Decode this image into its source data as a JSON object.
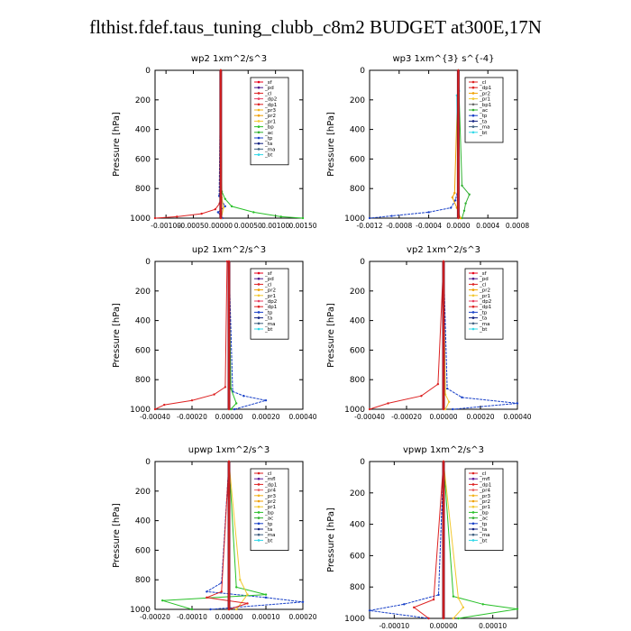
{
  "page_title": "flthist.fdef.taus_tuning_clubb_c8m2  BUDGET at300E,17N",
  "colors": {
    "sf": "#e8001c",
    "pd": "#4a1a8c",
    "cl": "#d22",
    "mfl": "#5a1a9a",
    "dp1": "#dd2222",
    "dp2": "#e84060",
    "pr1": "#f2c830",
    "pr2": "#f0a000",
    "pr3": "#f4b41a",
    "pr4": "#e86060",
    "bp": "#28c028",
    "ac": "#30b030",
    "tp": "#1840c8",
    "ta": "#102080",
    "ma": "#406080",
    "bt": "#30d8e8"
  },
  "chart_data": [
    {
      "type": "line",
      "title": "wp2  1xm^2/s^3",
      "ylabel": "Pressure [hPa]",
      "xlim": [
        -0.0012,
        0.0015
      ],
      "ylim": [
        1000,
        0
      ],
      "xticks": [
        -0.001,
        -0.0005,
        0.0,
        0.0005,
        0.001,
        0.0015
      ],
      "xtick_labels": [
        "-0.00100",
        "-0.00050",
        ".00000",
        "0.00050",
        "0.00100",
        "0.00150"
      ],
      "yticks": [
        0,
        200,
        400,
        600,
        800,
        1000
      ],
      "legend": [
        "_sf",
        "_pd",
        "_cl",
        "_dp2",
        "_dp1",
        "_pr3",
        "_pr2",
        "_pr1",
        "_bp",
        "_ac",
        "_tp",
        "_ta",
        "_ma",
        "_bt"
      ],
      "series": [
        {
          "name": "_dp1",
          "x": [
            0,
            0,
            -2e-05,
            -0.0001,
            -0.00035,
            -0.0008,
            -0.0012
          ],
          "y": [
            0,
            800,
            900,
            940,
            970,
            990,
            1000
          ]
        },
        {
          "name": "_bp",
          "x": [
            0,
            2e-05,
            8e-05,
            0.0002,
            0.0006,
            0.0011,
            0.0015
          ],
          "y": [
            0,
            820,
            870,
            920,
            960,
            990,
            1000
          ]
        },
        {
          "name": "_tp",
          "x": [
            0,
            -3e-05,
            8e-05,
            -5e-05,
            3e-05
          ],
          "y": [
            0,
            850,
            920,
            960,
            1000
          ]
        },
        {
          "name": "_pr1",
          "x": [
            0,
            2e-05,
            5e-05,
            1e-05
          ],
          "y": [
            0,
            860,
            930,
            1000
          ]
        },
        {
          "name": "_cl",
          "x": [
            0,
            0,
            0
          ],
          "y": [
            0,
            500,
            1000
          ]
        }
      ]
    },
    {
      "type": "line",
      "title": "wp3  1xm^{3} s^{-4}",
      "ylabel": "Pressure [hPa]",
      "xlim": [
        -0.0012,
        0.0008
      ],
      "ylim": [
        1000,
        0
      ],
      "xticks": [
        -0.0012,
        -0.0008,
        -0.0004,
        0.0,
        0.0004,
        0.0008
      ],
      "xtick_labels": [
        "-0.0012",
        "-0.0008",
        "-0.0004",
        "0.0000",
        "0.0004",
        "0.0008"
      ],
      "yticks": [
        0,
        200,
        400,
        600,
        800,
        1000
      ],
      "legend": [
        "_cl",
        "_dp1",
        "_pr2",
        "_pr1",
        "_bp1",
        "_ac",
        "_tp",
        "_ta",
        "_ma",
        "_bt"
      ],
      "series": [
        {
          "name": "_tp",
          "x": [
            0,
            0,
            -4e-05,
            -0.0001,
            -0.0004,
            -0.0009,
            -0.0012
          ],
          "y": [
            0,
            800,
            880,
            930,
            960,
            985,
            1000
          ]
        },
        {
          "name": "_ac",
          "x": [
            0,
            5e-05,
            0.00015,
            0.0001,
            8e-05,
            5e-05
          ],
          "y": [
            0,
            780,
            840,
            900,
            950,
            1000
          ]
        },
        {
          "name": "_pr2",
          "x": [
            0,
            -5e-05,
            -8e-05,
            -2e-05,
            3e-05
          ],
          "y": [
            0,
            830,
            860,
            930,
            1000
          ]
        },
        {
          "name": "_bt",
          "x": [
            0,
            1e-05,
            -2e-05,
            0.0
          ],
          "y": [
            0,
            140,
            170,
            1000
          ]
        },
        {
          "name": "_dp1",
          "x": [
            0,
            0,
            0
          ],
          "y": [
            0,
            500,
            1000
          ]
        }
      ]
    },
    {
      "type": "line",
      "title": "up2  1xm^2/s^3",
      "ylabel": "Pressure [hPa]",
      "xlim": [
        -0.0004,
        0.0004
      ],
      "ylim": [
        1000,
        0
      ],
      "xticks": [
        -0.0004,
        -0.0002,
        0.0,
        0.0002,
        0.0004
      ],
      "xtick_labels": [
        "-0.00040",
        "-0.00020",
        "0.00000",
        "0.00020",
        "0.00040"
      ],
      "yticks": [
        0,
        200,
        400,
        600,
        800,
        1000
      ],
      "legend": [
        "_sf",
        "_pd",
        "_cl",
        "_pr2",
        "_pr1",
        "_dp2",
        "_dp1",
        "_tp",
        "_ta",
        "_ma",
        "_bt"
      ],
      "series": [
        {
          "name": "_dp1",
          "x": [
            -1e-05,
            -2e-05,
            -8e-05,
            -0.0002,
            -0.00035,
            -0.0004
          ],
          "y": [
            0,
            850,
            900,
            940,
            970,
            1000
          ]
        },
        {
          "name": "_tp",
          "x": [
            0,
            2e-05,
            8e-05,
            0.0002,
            3e-05
          ],
          "y": [
            0,
            880,
            910,
            940,
            1000
          ]
        },
        {
          "name": "_bp",
          "x": [
            0,
            1e-05,
            4e-05,
            1e-05
          ],
          "y": [
            0,
            860,
            960,
            1000
          ]
        },
        {
          "name": "_cl",
          "x": [
            0,
            0,
            0
          ],
          "y": [
            0,
            500,
            1000
          ]
        }
      ]
    },
    {
      "type": "line",
      "title": "vp2  1xm^2/s^3",
      "ylabel": "Pressure [hPa]",
      "xlim": [
        -0.0004,
        0.0004
      ],
      "ylim": [
        1000,
        0
      ],
      "xticks": [
        -0.0004,
        -0.0002,
        0.0,
        0.0002,
        0.0004
      ],
      "xtick_labels": [
        "-0.00040",
        "-0.00020",
        "0.00000",
        "0.00020",
        "0.00040"
      ],
      "yticks": [
        0,
        200,
        400,
        600,
        800,
        1000
      ],
      "legend": [
        "_sf",
        "_pd",
        "_cl",
        "_pr2",
        "_pr1",
        "_dp2",
        "_dp1",
        "_tp",
        "_ta",
        "_ma",
        "_bt"
      ],
      "series": [
        {
          "name": "_dp1",
          "x": [
            0,
            -3e-05,
            -0.00012,
            -0.0003,
            -0.0004
          ],
          "y": [
            0,
            830,
            910,
            960,
            1000
          ]
        },
        {
          "name": "_tp",
          "x": [
            0,
            2e-05,
            0.0001,
            0.0004,
            5e-05
          ],
          "y": [
            0,
            860,
            920,
            960,
            1000
          ]
        },
        {
          "name": "_pr1",
          "x": [
            0,
            1e-05,
            3e-05,
            1e-05
          ],
          "y": [
            0,
            900,
            950,
            1000
          ]
        },
        {
          "name": "_cl",
          "x": [
            0,
            0,
            0
          ],
          "y": [
            0,
            500,
            1000
          ]
        }
      ]
    },
    {
      "type": "line",
      "title": "upwp  1xm^2/s^3",
      "ylabel": "Pressure [hPa]",
      "xlim": [
        -0.0002,
        0.0002
      ],
      "ylim": [
        1000,
        0
      ],
      "xticks": [
        -0.0002,
        -0.0001,
        0.0,
        0.0001,
        0.0002
      ],
      "xtick_labels": [
        "-0.00020",
        "-0.00010",
        "0.00000",
        "0.00010",
        "0.00020"
      ],
      "yticks": [
        0,
        200,
        400,
        600,
        800,
        1000
      ],
      "legend": [
        "_cl",
        "_mfl",
        "_dp1",
        "_pr4",
        "_pr3",
        "_pr2",
        "_pr1",
        "_bp",
        "_ac",
        "_tp",
        "_ta",
        "_ma",
        "_bt"
      ],
      "series": [
        {
          "name": "_tp",
          "x": [
            0,
            -2e-05,
            -6e-05,
            0.0001,
            0.0002,
            -5e-05
          ],
          "y": [
            0,
            820,
            880,
            920,
            950,
            1000
          ]
        },
        {
          "name": "_bp",
          "x": [
            0,
            2e-05,
            0.0001,
            -0.00018,
            -0.0001
          ],
          "y": [
            0,
            850,
            900,
            940,
            1000
          ]
        },
        {
          "name": "_pr1",
          "x": [
            0,
            3e-05,
            5e-05,
            2e-05
          ],
          "y": [
            0,
            800,
            900,
            1000
          ]
        },
        {
          "name": "_dp1",
          "x": [
            0,
            -2e-05,
            -6e-05,
            5e-05,
            0.0
          ],
          "y": [
            0,
            880,
            920,
            960,
            1000
          ]
        },
        {
          "name": "_cl",
          "x": [
            0,
            0,
            0
          ],
          "y": [
            0,
            500,
            1000
          ]
        }
      ]
    },
    {
      "type": "line",
      "title": "vpwp  1xm^2/s^3",
      "ylabel": "Pressure [hPa]",
      "xlim": [
        -0.00015,
        0.00015
      ],
      "ylim": [
        1000,
        0
      ],
      "xticks": [
        -0.0001,
        0.0,
        0.0001
      ],
      "xtick_labels": [
        "-0.00010",
        "0.00000",
        "0.00010"
      ],
      "yticks": [
        0,
        200,
        400,
        600,
        800,
        1000
      ],
      "legend": [
        "_cl",
        "_mfl",
        "_dp1",
        "_pr4",
        "_pr3",
        "_pr2",
        "_pr1",
        "_bp",
        "_ac",
        "_tp",
        "_ta",
        "_ma",
        "_bt"
      ],
      "series": [
        {
          "name": "_tp",
          "x": [
            0,
            -1e-05,
            -8e-05,
            -0.00015,
            -3e-05
          ],
          "y": [
            0,
            850,
            910,
            950,
            1000
          ]
        },
        {
          "name": "_bp",
          "x": [
            0,
            2e-05,
            8e-05,
            0.00015,
            3e-05
          ],
          "y": [
            0,
            860,
            910,
            940,
            1000
          ]
        },
        {
          "name": "_dp1",
          "x": [
            0,
            -2e-05,
            -6e-05,
            -3e-05
          ],
          "y": [
            0,
            880,
            930,
            1000
          ]
        },
        {
          "name": "_pr1",
          "x": [
            0,
            3e-05,
            4e-05,
            2e-05
          ],
          "y": [
            0,
            870,
            930,
            1000
          ]
        },
        {
          "name": "_cl",
          "x": [
            0,
            0,
            0
          ],
          "y": [
            0,
            500,
            1000
          ]
        }
      ]
    }
  ]
}
